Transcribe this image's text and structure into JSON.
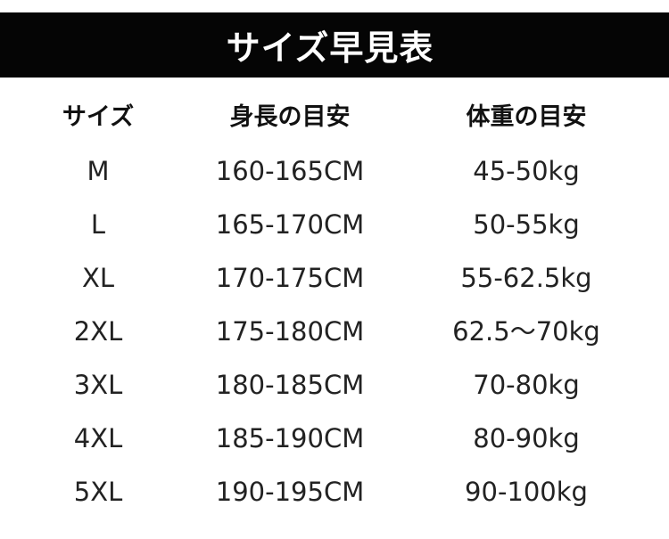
{
  "title": "サイズ早見表",
  "headers": [
    "サイズ",
    "身長の目安",
    "体重の目安"
  ],
  "rows": [
    [
      "M",
      "160-165CM",
      "45-50kg"
    ],
    [
      "L",
      "165-170CM",
      "50-55kg"
    ],
    [
      "XL",
      "170-175CM",
      "55-62.5kg"
    ],
    [
      "2XL",
      "175-180CM",
      "62.5～70kg"
    ],
    [
      "3XL",
      "180-185CM",
      "70-80kg"
    ],
    [
      "4XL",
      "185-190CM",
      "80-90kg"
    ],
    [
      "5XL",
      "190-195CM",
      "90-100kg"
    ]
  ]
}
